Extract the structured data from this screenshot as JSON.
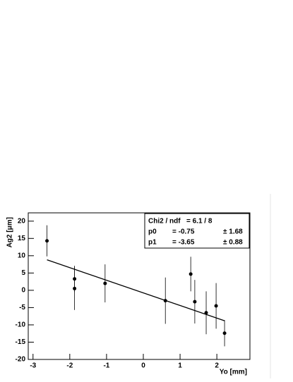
{
  "chart_data": {
    "type": "scatter",
    "x_label": "Yo [mm]",
    "y_label": "Ag2 [μm]",
    "series": [
      {
        "color": "#000000",
        "x": [
          -2.62,
          -1.87,
          -1.87,
          -1.04,
          0.6,
          1.29,
          1.4,
          1.71,
          1.98,
          2.21
        ],
        "values": [
          14.3,
          3.3,
          0.5,
          2.0,
          -3.0,
          4.7,
          -3.3,
          -6.5,
          -4.5,
          -12.4
        ],
        "errors": [
          4.5,
          3.8,
          6.2,
          5.5,
          6.7,
          5.0,
          6.3,
          6.2,
          6.6,
          3.8
        ]
      }
    ],
    "fit": {
      "p0": -0.75,
      "p1": -3.65
    },
    "stats": [
      {
        "label": "Chi2 / ndf",
        "value": "= 6.1 / 8"
      },
      {
        "label": "p0",
        "value": "= -0.75",
        "error": "± 1.68"
      },
      {
        "label": "p1",
        "value": "= -3.65",
        "error": "± 0.88"
      }
    ],
    "xlim": [
      -3.13,
      2.9
    ],
    "ylim": [
      -20,
      22.4
    ],
    "xticks": [
      -3,
      -2,
      -1,
      0,
      1,
      2
    ],
    "yticks": [
      -20,
      -15,
      -10,
      -5,
      0,
      5,
      10,
      15,
      20
    ]
  }
}
